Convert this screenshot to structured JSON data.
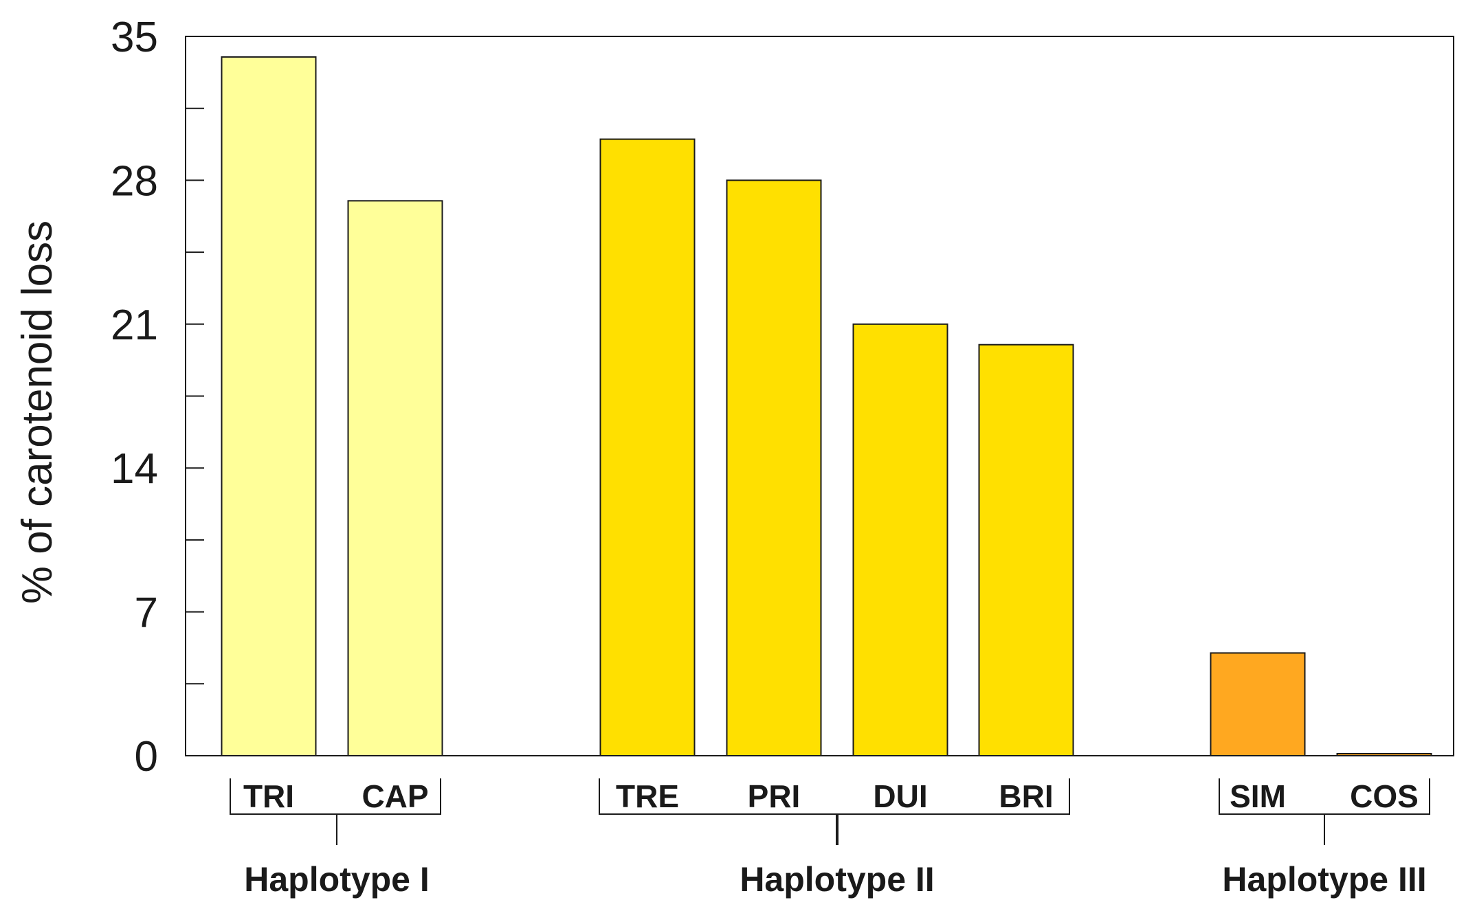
{
  "chart_data": {
    "type": "bar",
    "ylabel": "% of carotenoid loss",
    "xlabel": "",
    "ylim": [
      0,
      35
    ],
    "yticks": [
      0,
      7,
      14,
      21,
      28,
      35
    ],
    "minor_yticks": [
      3.5,
      10.5,
      17.5,
      24.5,
      31.5
    ],
    "grid": false,
    "legend": "none",
    "categories": [
      "TRI",
      "CAP",
      "TRE",
      "PRI",
      "DUI",
      "BRI",
      "SIM",
      "COS"
    ],
    "values": [
      34,
      27,
      30,
      28,
      21,
      20,
      5,
      0.1
    ],
    "colors": [
      "#FFFF99",
      "#FFFF99",
      "#FFE000",
      "#FFE000",
      "#FFE000",
      "#FFE000",
      "#FFA820",
      "#FFA820"
    ],
    "groups": [
      {
        "label": "Haplotype I",
        "categories": [
          "TRI",
          "CAP"
        ]
      },
      {
        "label": "Haplotype II",
        "categories": [
          "TRE",
          "PRI",
          "DUI",
          "BRI"
        ]
      },
      {
        "label": "Haplotype III",
        "categories": [
          "SIM",
          "COS"
        ]
      }
    ]
  }
}
